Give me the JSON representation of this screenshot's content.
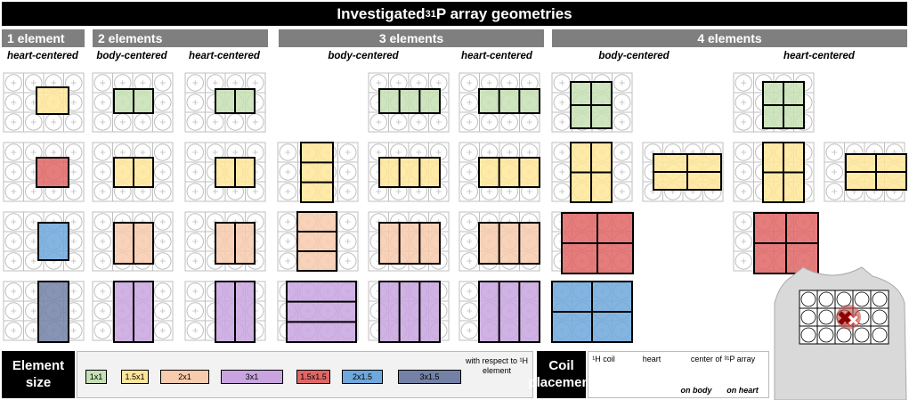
{
  "title": {
    "prefix": "Investigated ",
    "sup": "31",
    "suffix": "P array geometries"
  },
  "groups": [
    "1 element",
    "2 elements",
    "3 elements",
    "4 elements"
  ],
  "placements": {
    "heart": "heart-centered",
    "body": "body-centered"
  },
  "colors": {
    "1x1": "#c5e0b4",
    "1.5x1": "#ffe699",
    "2x1": "#f8cbad",
    "3x1": "#c9a4e0",
    "1.5x1.5": "#e06666",
    "2x1.5": "#6fa8dc",
    "3x1.5": "#7381a6",
    "grid": "#bfbfbf",
    "header": "#7f7f7f"
  },
  "legend": {
    "element_size_title": "Element size",
    "sizes": [
      "1x1",
      "1.5x1",
      "2x1",
      "3x1",
      "1.5x1.5",
      "2x1.5",
      "3x1.5"
    ],
    "with_respect": "with respect to ¹H element",
    "coil_placement_title": "Coil placement",
    "h_coil": "¹H coil",
    "heart": "heart",
    "center_title": "center of ³¹P array",
    "on_body": "on body",
    "on_heart": "on heart"
  },
  "icons": [
    "h-coil-icon",
    "heart-icon",
    "center-on-body-icon",
    "center-on-heart-icon",
    "torso-icon"
  ]
}
